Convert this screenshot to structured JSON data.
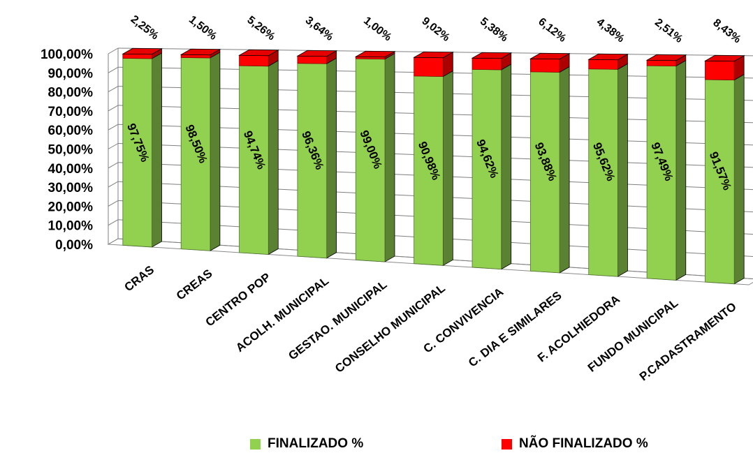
{
  "chart_data": {
    "type": "bar",
    "stacked": true,
    "three_d": true,
    "categories": [
      "CRAS",
      "CREAS",
      "CENTRO POP",
      "ACOLH. MUNICIPAL",
      "GESTAO. MUNICIPAL",
      "CONSELHO MUNICIPAL",
      "C. CONVIVENCIA",
      "C. DIA E SIMILARES",
      "F. ACOLHIEDORA",
      "FUNDO  MUNICIPAL",
      "P.CADASTRAMENTO"
    ],
    "series": [
      {
        "name": "FINALIZADO %",
        "color": "#92D050",
        "values": [
          97.75,
          98.5,
          94.74,
          96.36,
          99.0,
          90.98,
          94.62,
          93.88,
          95.62,
          97.49,
          91.57
        ],
        "labels": [
          "97,75%",
          "98,50%",
          "94,74%",
          "96,36%",
          "99,00%",
          "90,98%",
          "94,62%",
          "93,88%",
          "95,62%",
          "97,49%",
          "91,57%"
        ]
      },
      {
        "name": "NÃO  FINALIZADO %",
        "color": "#FF0000",
        "values": [
          2.25,
          1.5,
          5.26,
          3.64,
          1.0,
          9.02,
          5.38,
          6.12,
          4.38,
          2.51,
          8.43
        ],
        "labels": [
          "2,25%",
          "1,50%",
          "5,26%",
          "3,64%",
          "1,00%",
          "9,02%",
          "5,38%",
          "6,12%",
          "4,38%",
          "2,51%",
          "8,43%"
        ]
      }
    ],
    "y_ticks": [
      "0,00%",
      "10,00%",
      "20,00%",
      "30,00%",
      "40,00%",
      "50,00%",
      "60,00%",
      "70,00%",
      "80,00%",
      "90,00%",
      "100,00%"
    ],
    "ylim": [
      0,
      100
    ],
    "grid": true,
    "legend": "bottom"
  }
}
